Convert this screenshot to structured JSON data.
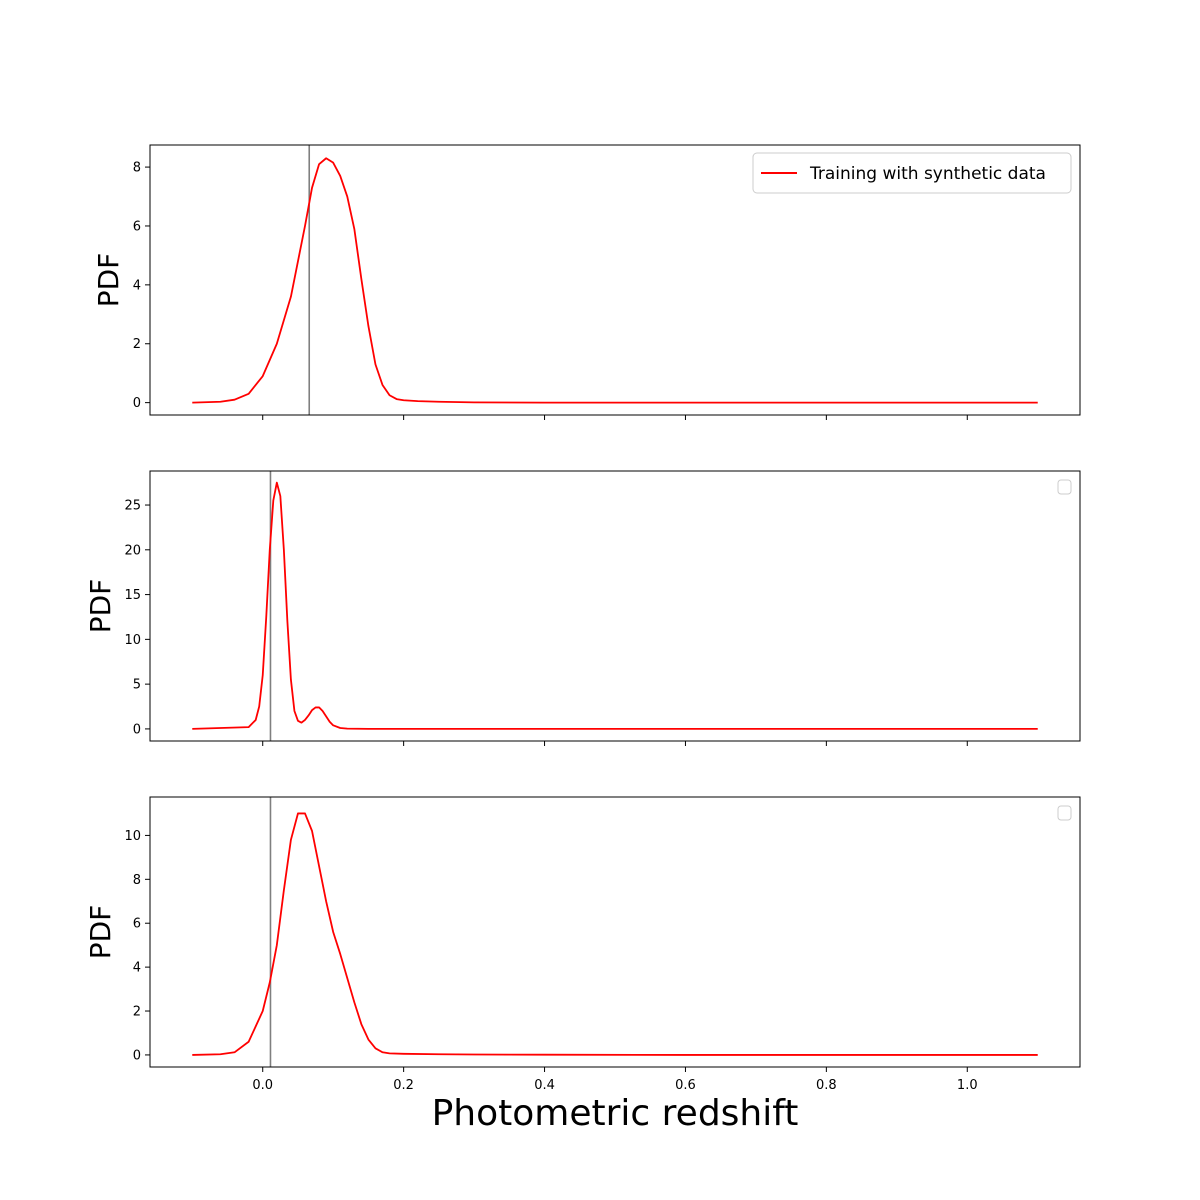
{
  "chart_data": {
    "type": "line",
    "shared_xlabel": "Photometric redshift",
    "x_ticks": [
      0.0,
      0.2,
      0.4,
      0.6,
      0.8,
      1.0
    ],
    "x_tick_labels": [
      "0.0",
      "0.2",
      "0.4",
      "0.6",
      "0.8",
      "1.0"
    ],
    "xlim": [
      -0.16,
      1.16
    ],
    "line_color": "#ff0000",
    "vline_color": "#7f7f7f",
    "panels": [
      {
        "ylabel": "PDF",
        "ylim": [
          -0.42,
          8.75
        ],
        "y_ticks": [
          0,
          2,
          4,
          6,
          8
        ],
        "y_tick_labels": [
          "0",
          "2",
          "4",
          "6",
          "8"
        ],
        "vline_x": 0.066,
        "legend": {
          "show": true,
          "placement": "upper-right",
          "entries": [
            "Training with synthetic data"
          ]
        },
        "series": [
          {
            "name": "Training with synthetic data",
            "x": [
              -0.1,
              -0.06,
              -0.04,
              -0.02,
              0.0,
              0.02,
              0.04,
              0.06,
              0.07,
              0.08,
              0.09,
              0.1,
              0.11,
              0.12,
              0.13,
              0.14,
              0.15,
              0.16,
              0.17,
              0.18,
              0.19,
              0.2,
              0.22,
              0.25,
              0.3,
              0.4,
              0.6,
              0.8,
              1.1
            ],
            "y": [
              0.0,
              0.03,
              0.1,
              0.3,
              0.9,
              2.0,
              3.6,
              6.0,
              7.3,
              8.1,
              8.3,
              8.15,
              7.7,
              7.0,
              5.9,
              4.2,
              2.6,
              1.3,
              0.6,
              0.25,
              0.12,
              0.08,
              0.05,
              0.03,
              0.01,
              0.0,
              0.0,
              0.0,
              0.0
            ]
          }
        ]
      },
      {
        "ylabel": "PDF",
        "ylim": [
          -1.35,
          28.8
        ],
        "y_ticks": [
          0,
          5,
          10,
          15,
          20,
          25
        ],
        "y_tick_labels": [
          "0",
          "5",
          "10",
          "15",
          "20",
          "25"
        ],
        "vline_x": 0.011,
        "legend": {
          "show": true,
          "placement": "upper-right",
          "entries": []
        },
        "series": [
          {
            "x": [
              -0.1,
              -0.02,
              -0.01,
              -0.005,
              0.0,
              0.005,
              0.01,
              0.015,
              0.02,
              0.025,
              0.03,
              0.035,
              0.04,
              0.045,
              0.05,
              0.055,
              0.06,
              0.065,
              0.07,
              0.075,
              0.08,
              0.085,
              0.09,
              0.095,
              0.1,
              0.11,
              0.12,
              0.15,
              0.3,
              0.6,
              1.1
            ],
            "y": [
              0.0,
              0.2,
              1.0,
              2.5,
              6.0,
              12.5,
              20.0,
              25.5,
              27.5,
              26.0,
              20.0,
              12.0,
              5.5,
              2.0,
              0.9,
              0.7,
              1.0,
              1.5,
              2.1,
              2.4,
              2.4,
              2.0,
              1.4,
              0.8,
              0.4,
              0.1,
              0.03,
              0.0,
              0.0,
              0.0,
              0.0
            ]
          }
        ]
      },
      {
        "ylabel": "PDF",
        "ylim": [
          -0.55,
          11.75
        ],
        "y_ticks": [
          0,
          2,
          4,
          6,
          8,
          10
        ],
        "y_tick_labels": [
          "0",
          "2",
          "4",
          "6",
          "8",
          "10"
        ],
        "vline_x": 0.011,
        "legend": {
          "show": true,
          "placement": "upper-right",
          "entries": []
        },
        "series": [
          {
            "x": [
              -0.1,
              -0.06,
              -0.04,
              -0.02,
              0.0,
              0.01,
              0.02,
              0.03,
              0.04,
              0.05,
              0.06,
              0.07,
              0.08,
              0.09,
              0.1,
              0.11,
              0.12,
              0.13,
              0.14,
              0.15,
              0.16,
              0.17,
              0.18,
              0.2,
              0.25,
              0.3,
              0.4,
              0.6,
              0.8,
              1.1
            ],
            "y": [
              0.0,
              0.03,
              0.12,
              0.6,
              2.0,
              3.3,
              5.0,
              7.5,
              9.8,
              11.0,
              11.0,
              10.2,
              8.6,
              7.0,
              5.6,
              4.6,
              3.5,
              2.4,
              1.4,
              0.7,
              0.3,
              0.12,
              0.07,
              0.05,
              0.03,
              0.02,
              0.01,
              0.0,
              0.0,
              0.0
            ]
          }
        ]
      }
    ]
  }
}
